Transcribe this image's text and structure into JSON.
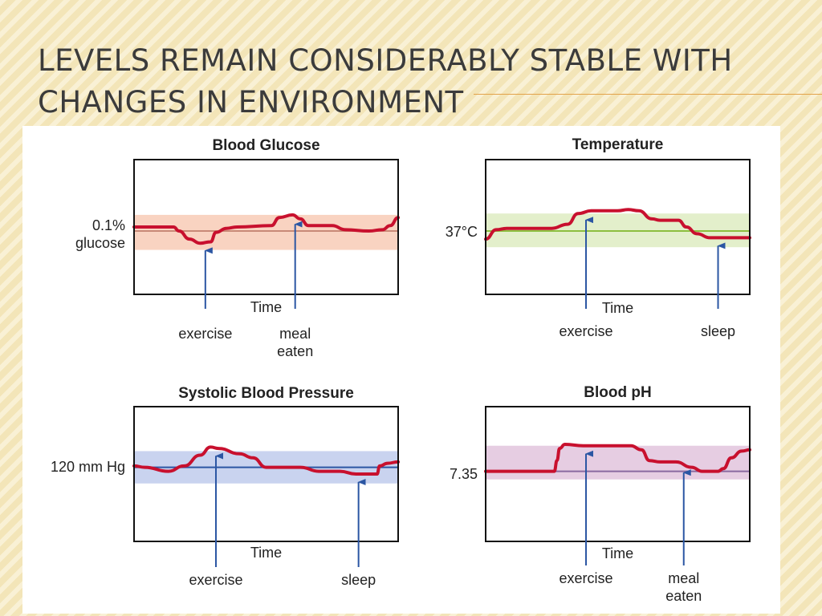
{
  "slide": {
    "title_line1": "Levels remain considerably stable with",
    "title_line2": "changes in environment"
  },
  "colors": {
    "curve": "#c8102e",
    "arrow": "#2b56a3",
    "glucose_band": "#f9d3c1",
    "temperature_band": "#e3efcb",
    "pressure_band": "#c9d3ef",
    "ph_band": "#e6cde2"
  },
  "charts": [
    {
      "id": "glucose",
      "title": "Blood Glucose",
      "y_label_lines": [
        "0.1%",
        "glucose"
      ],
      "x_label": "Time",
      "band_color": "#f9d3c1",
      "setpoint_color": "#c98a77",
      "annotations": [
        {
          "label_lines": [
            "exercise"
          ],
          "x": 0.27
        },
        {
          "label_lines": [
            "meal",
            "eaten"
          ],
          "x": 0.61
        }
      ],
      "curve": [
        [
          0,
          0.5
        ],
        [
          0.15,
          0.5
        ],
        [
          0.17,
          0.53
        ],
        [
          0.21,
          0.59
        ],
        [
          0.25,
          0.62
        ],
        [
          0.29,
          0.61
        ],
        [
          0.31,
          0.54
        ],
        [
          0.35,
          0.51
        ],
        [
          0.39,
          0.5
        ],
        [
          0.52,
          0.49
        ],
        [
          0.55,
          0.43
        ],
        [
          0.6,
          0.41
        ],
        [
          0.63,
          0.44
        ],
        [
          0.66,
          0.49
        ],
        [
          0.75,
          0.49
        ],
        [
          0.8,
          0.52
        ],
        [
          0.89,
          0.53
        ],
        [
          0.94,
          0.52
        ],
        [
          0.97,
          0.49
        ],
        [
          1.0,
          0.43
        ]
      ]
    },
    {
      "id": "temperature",
      "title": "Temperature",
      "y_label_lines": [
        "37°C"
      ],
      "x_label": "Time",
      "band_color": "#e3efcb",
      "setpoint_color": "#8cbf3f",
      "annotations": [
        {
          "label_lines": [
            "exercise"
          ],
          "x": 0.38
        },
        {
          "label_lines": [
            "sleep"
          ],
          "x": 0.88
        }
      ],
      "curve": [
        [
          0,
          0.59
        ],
        [
          0.04,
          0.52
        ],
        [
          0.08,
          0.51
        ],
        [
          0.25,
          0.51
        ],
        [
          0.31,
          0.48
        ],
        [
          0.35,
          0.4
        ],
        [
          0.4,
          0.38
        ],
        [
          0.5,
          0.38
        ],
        [
          0.54,
          0.37
        ],
        [
          0.58,
          0.38
        ],
        [
          0.63,
          0.44
        ],
        [
          0.66,
          0.45
        ],
        [
          0.7,
          0.45
        ],
        [
          0.73,
          0.45
        ],
        [
          0.76,
          0.5
        ],
        [
          0.8,
          0.55
        ],
        [
          0.85,
          0.58
        ],
        [
          0.9,
          0.58
        ],
        [
          1.0,
          0.58
        ]
      ]
    },
    {
      "id": "pressure",
      "title": "Systolic Blood Pressure",
      "y_label_lines": [
        "120 mm Hg"
      ],
      "x_label": "Time",
      "band_color": "#c9d3ef",
      "setpoint_color": "#2b56a3",
      "annotations": [
        {
          "label_lines": [
            "exercise"
          ],
          "x": 0.31
        },
        {
          "label_lines": [
            "sleep"
          ],
          "x": 0.85
        }
      ],
      "curve": [
        [
          0,
          0.44
        ],
        [
          0.04,
          0.45
        ],
        [
          0.13,
          0.48
        ],
        [
          0.19,
          0.44
        ],
        [
          0.25,
          0.36
        ],
        [
          0.29,
          0.3
        ],
        [
          0.32,
          0.31
        ],
        [
          0.4,
          0.35
        ],
        [
          0.45,
          0.38
        ],
        [
          0.5,
          0.45
        ],
        [
          0.63,
          0.45
        ],
        [
          0.7,
          0.48
        ],
        [
          0.78,
          0.48
        ],
        [
          0.84,
          0.5
        ],
        [
          0.92,
          0.5
        ],
        [
          0.93,
          0.44
        ],
        [
          0.96,
          0.42
        ],
        [
          1.0,
          0.41
        ]
      ]
    },
    {
      "id": "ph",
      "title": "Blood pH",
      "y_label_lines": [
        "7.35"
      ],
      "x_label": "Time",
      "band_color": "#e6cde2",
      "setpoint_color": "#8a6aa0",
      "annotations": [
        {
          "label_lines": [
            "exercise"
          ],
          "x": 0.38
        },
        {
          "label_lines": [
            "meal",
            "eaten"
          ],
          "x": 0.75
        }
      ],
      "curve": [
        [
          0,
          0.48
        ],
        [
          0.26,
          0.48
        ],
        [
          0.27,
          0.4
        ],
        [
          0.28,
          0.31
        ],
        [
          0.3,
          0.28
        ],
        [
          0.37,
          0.29
        ],
        [
          0.55,
          0.29
        ],
        [
          0.59,
          0.32
        ],
        [
          0.62,
          0.4
        ],
        [
          0.66,
          0.41
        ],
        [
          0.72,
          0.41
        ],
        [
          0.78,
          0.45
        ],
        [
          0.82,
          0.48
        ],
        [
          0.88,
          0.48
        ],
        [
          0.9,
          0.46
        ],
        [
          0.93,
          0.38
        ],
        [
          0.97,
          0.33
        ],
        [
          1.0,
          0.32
        ]
      ]
    }
  ]
}
